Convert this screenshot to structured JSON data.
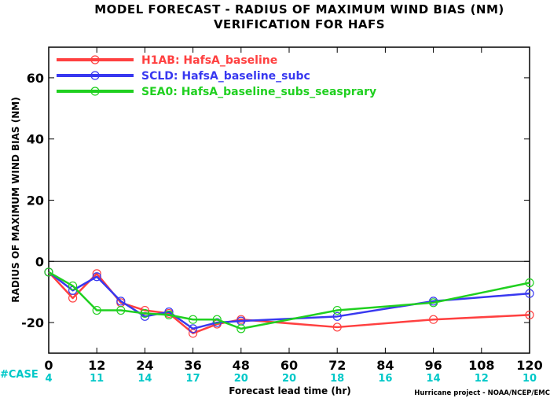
{
  "chart_data": {
    "type": "line",
    "title": "MODEL FORECAST - RADIUS OF MAXIMUM WIND BIAS (NM)",
    "subtitle": "VERIFICATION FOR HAFS",
    "xlabel": "Forecast lead time (hr)",
    "ylabel": "RADIUS OF MAXIMUM WIND BIAS (NM)",
    "xlim": [
      0,
      120
    ],
    "ylim": [
      -30,
      70
    ],
    "xticks": [
      0,
      12,
      24,
      36,
      48,
      60,
      72,
      84,
      96,
      108,
      120
    ],
    "yticks": [
      -20,
      0,
      20,
      40,
      60
    ],
    "zero_line": 0,
    "case_label": "#CASE",
    "case_counts": [
      4,
      11,
      14,
      17,
      20,
      20,
      18,
      16,
      14,
      12,
      10
    ],
    "case_color": "#00c8c8",
    "credit": "Hurricane project - NOAA/NCEP/EMC",
    "legend_position": "top-left",
    "series": [
      {
        "name": "H1AB: HafsA_baseline",
        "color": "#ff4040",
        "x": [
          0,
          6,
          12,
          18,
          24,
          30,
          36,
          42,
          48,
          72,
          96,
          120
        ],
        "y": [
          -3.5,
          -12,
          -4,
          -13.5,
          -16,
          -17,
          -23.5,
          -20.5,
          -19,
          -21.5,
          -19,
          -17.5
        ]
      },
      {
        "name": "SCLD: HafsA_baseline_subc",
        "color": "#3838f0",
        "x": [
          0,
          6,
          12,
          18,
          24,
          30,
          36,
          42,
          48,
          72,
          96,
          120
        ],
        "y": [
          -3.5,
          -9.5,
          -5,
          -13,
          -18,
          -16.5,
          -22,
          -20,
          -19.5,
          -18,
          -13,
          -10.5
        ]
      },
      {
        "name": "SEA0: HafsA_baseline_subs_seasprary",
        "color": "#20d020",
        "x": [
          0,
          6,
          12,
          18,
          24,
          30,
          36,
          42,
          48,
          72,
          96,
          120
        ],
        "y": [
          -3.5,
          -8,
          -16,
          -16,
          -17,
          -17.5,
          -19,
          -19,
          -22,
          -16,
          -13.5,
          -7
        ]
      }
    ]
  }
}
